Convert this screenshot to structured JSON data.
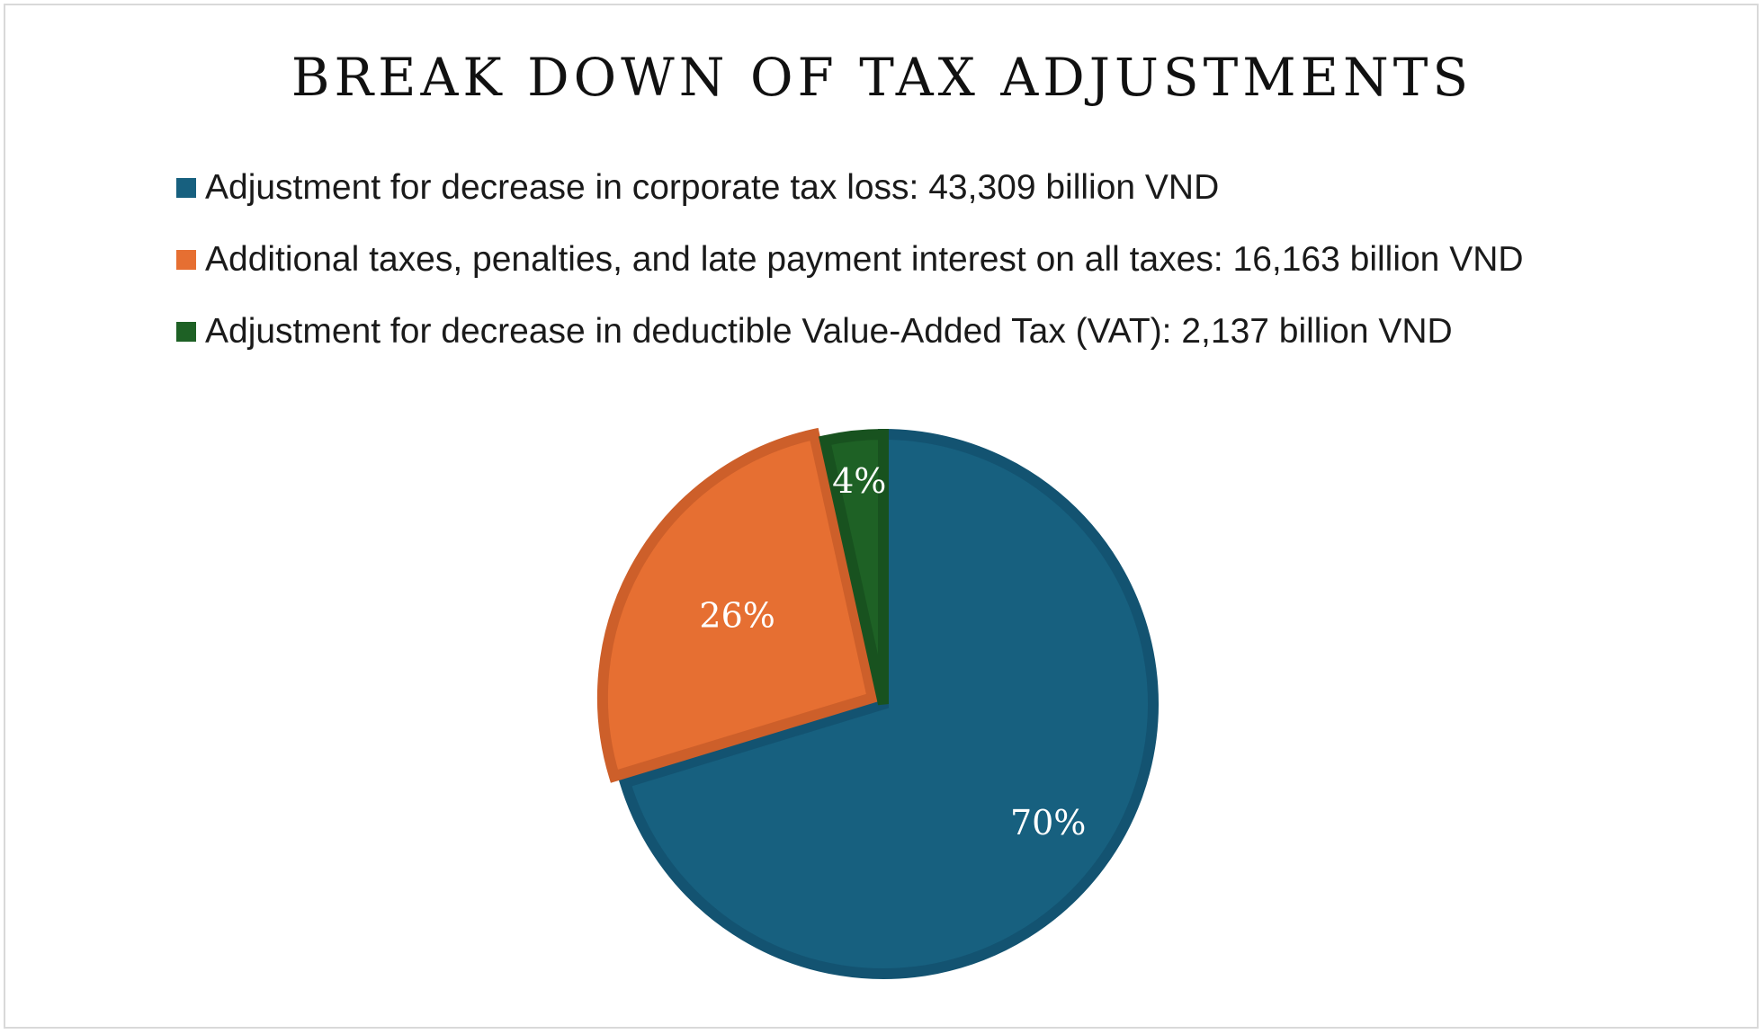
{
  "chart_data": {
    "type": "pie",
    "title": "BREAK DOWN OF TAX ADJUSTMENTS",
    "legend_position": "top",
    "slices": [
      {
        "legend": "Adjustment for decrease in corporate tax loss: 43,309 billion VND",
        "value": 43309,
        "label": "70%",
        "color": "#17607f",
        "edge_color": "#135371"
      },
      {
        "legend": "Additional taxes, penalties, and late payment interest on all taxes: 16,163 billion VND",
        "value": 16163,
        "label": "26%",
        "color": "#e66f32",
        "edge_color": "#cd5f2a"
      },
      {
        "legend": "Adjustment for decrease in deductible Value-Added Tax (VAT): 2,137 billion VND",
        "value": 2137,
        "label": "4%",
        "color": "#1e6125",
        "edge_color": "#18521f"
      }
    ]
  }
}
